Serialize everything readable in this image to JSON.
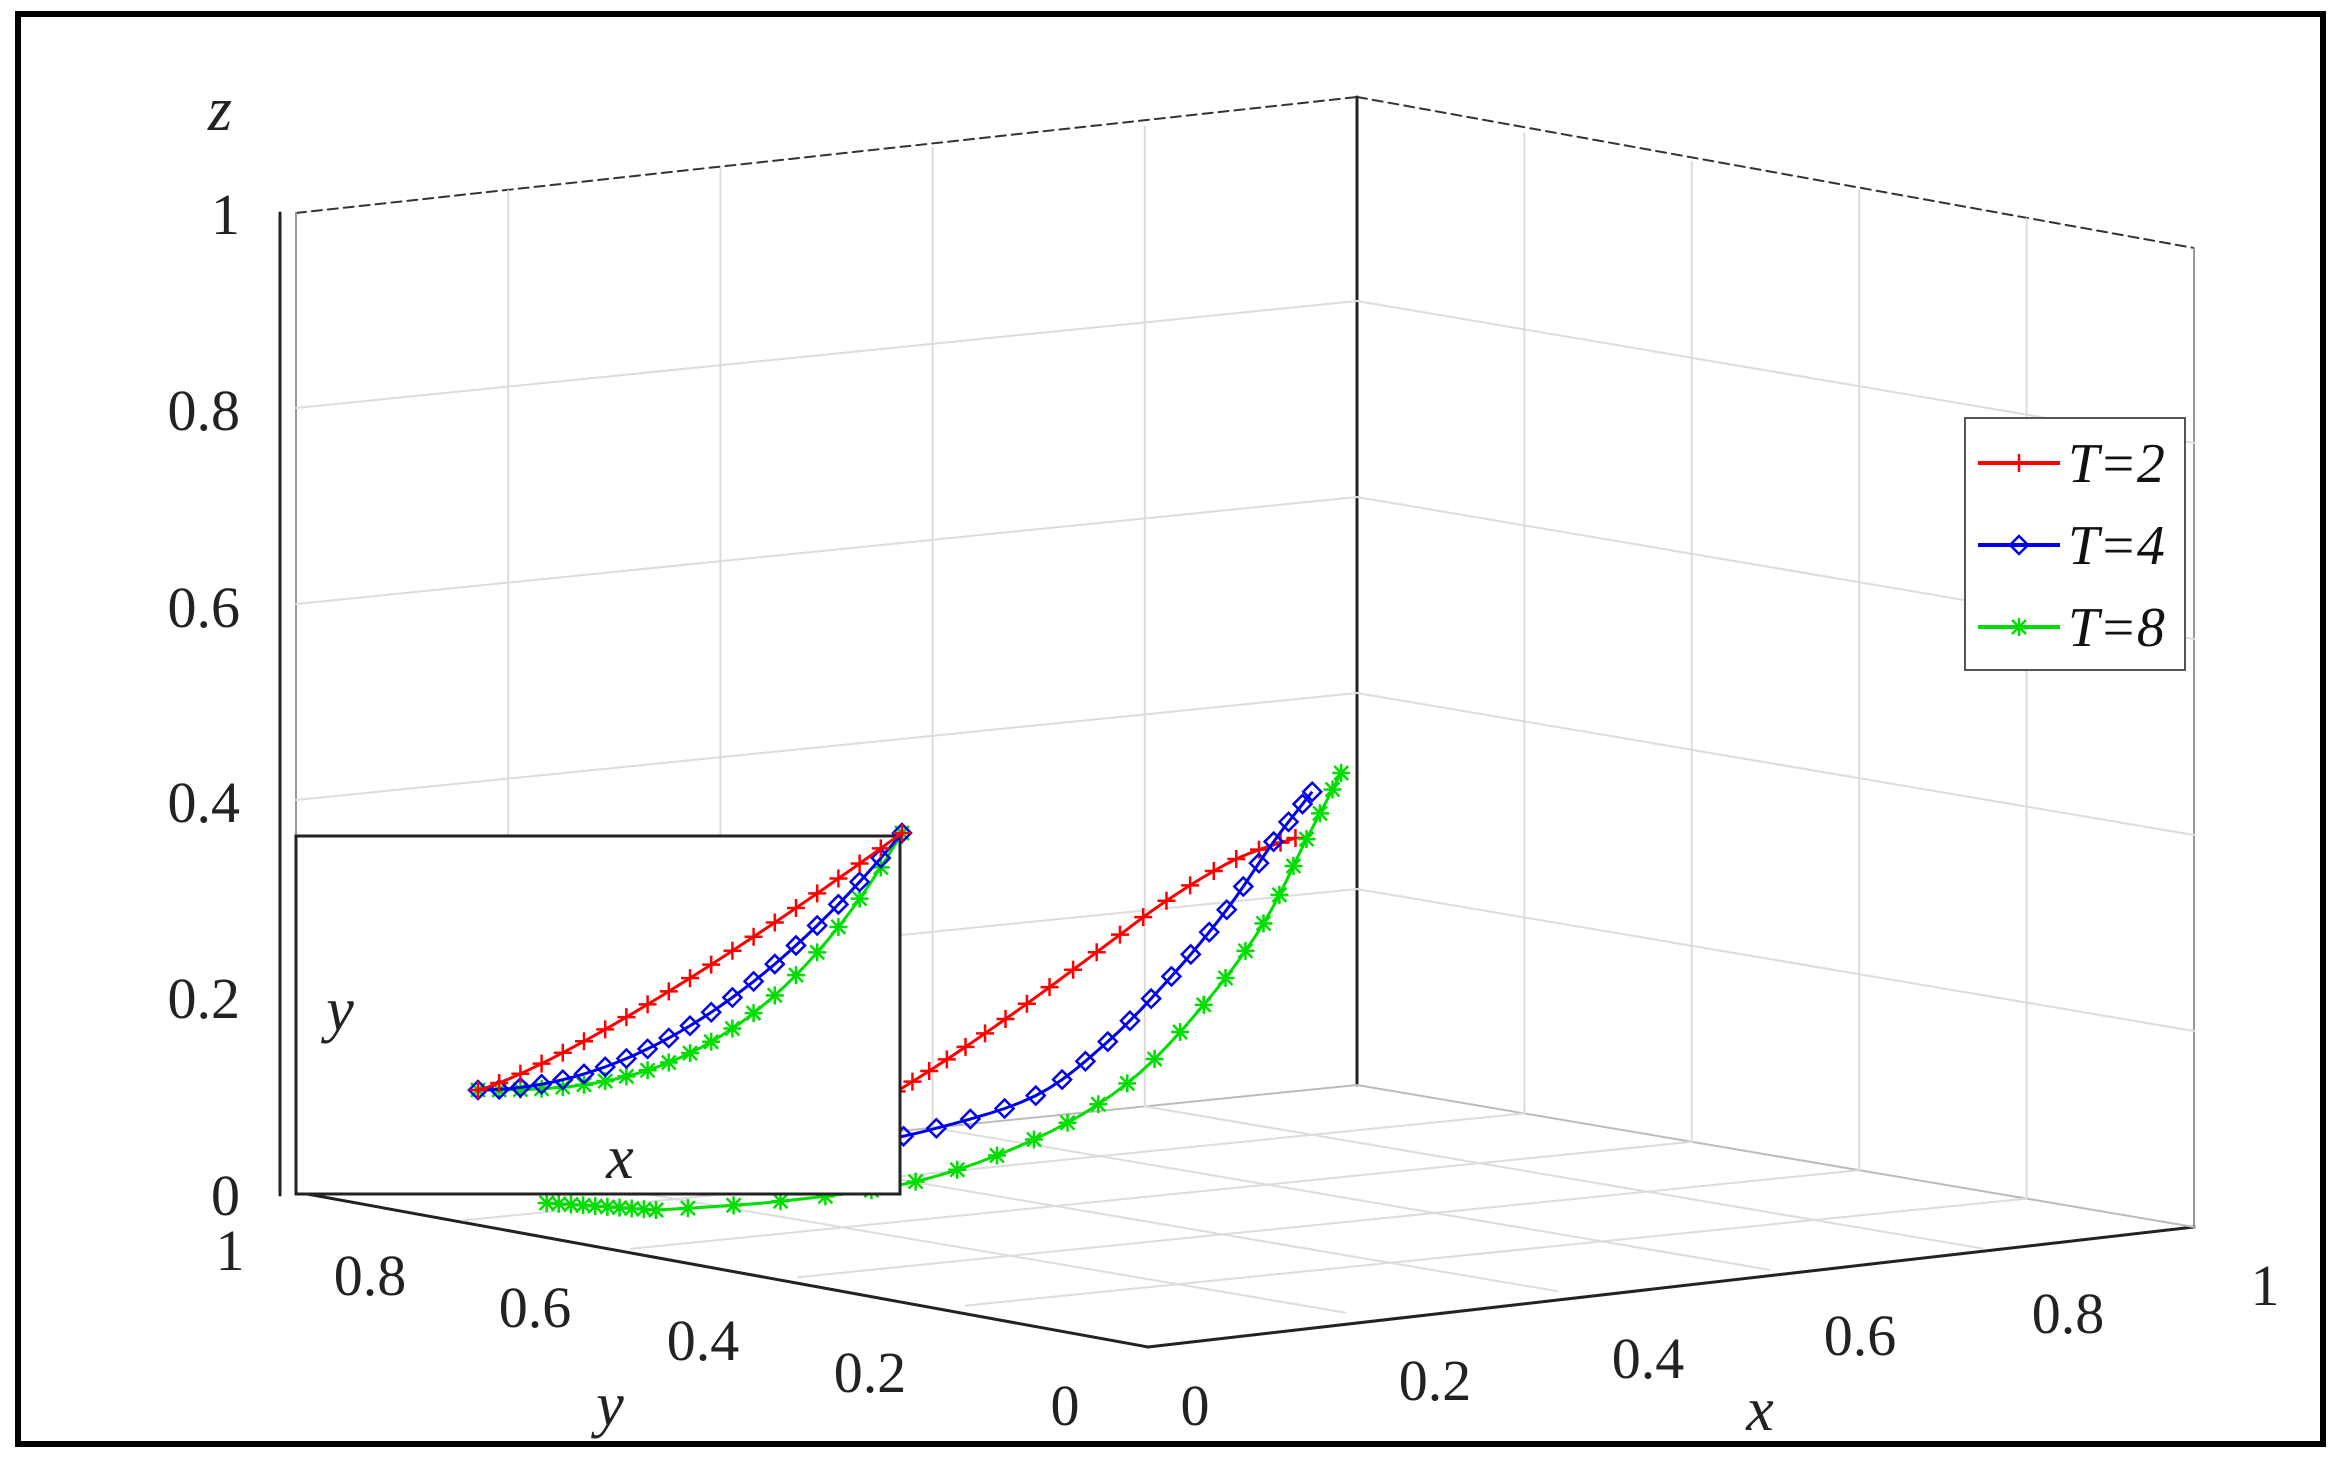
{
  "chart_data": {
    "type": "line",
    "projection": "3d",
    "grid": true,
    "legend_position": "right",
    "axes": {
      "x": {
        "label": "x",
        "ticks": [
          "0",
          "0.2",
          "0.4",
          "0.6",
          "0.8",
          "1"
        ],
        "range": [
          0,
          1
        ]
      },
      "y": {
        "label": "y",
        "ticks": [
          "0",
          "0.2",
          "0.4",
          "0.6",
          "0.8",
          "1"
        ],
        "range": [
          0,
          1
        ]
      },
      "z": {
        "label": "z",
        "ticks": [
          "0",
          "0.2",
          "0.4",
          "0.6",
          "0.8",
          "1"
        ],
        "range": [
          0,
          1
        ]
      }
    },
    "series": [
      {
        "name": "T=2",
        "color": "#ff0000",
        "marker": "plus",
        "x": [
          0.18,
          0.16,
          0.14,
          0.12,
          0.1,
          0.09,
          0.09,
          0.1,
          0.12
        ],
        "y": [
          0.2,
          0.24,
          0.29,
          0.34,
          0.39,
          0.44,
          0.49,
          0.54,
          0.59
        ],
        "z": [
          0.3,
          0.28,
          0.24,
          0.19,
          0.14,
          0.1,
          0.07,
          0.05,
          0.04
        ]
      },
      {
        "name": "T=4",
        "color": "#0000ee",
        "marker": "diamond",
        "x": [
          0.2,
          0.23,
          0.25,
          0.26,
          0.26,
          0.25,
          0.22,
          0.18,
          0.15
        ],
        "y": [
          0.2,
          0.26,
          0.32,
          0.38,
          0.44,
          0.5,
          0.57,
          0.63,
          0.69
        ],
        "z": [
          0.35,
          0.31,
          0.25,
          0.19,
          0.13,
          0.08,
          0.05,
          0.03,
          0.02
        ]
      },
      {
        "name": "T=8",
        "color": "#00dd00",
        "marker": "star",
        "x": [
          0.26,
          0.32,
          0.37,
          0.4,
          0.41,
          0.4,
          0.36,
          0.3,
          0.24
        ],
        "y": [
          0.22,
          0.3,
          0.38,
          0.46,
          0.54,
          0.62,
          0.7,
          0.78,
          0.85
        ],
        "z": [
          0.38,
          0.33,
          0.26,
          0.19,
          0.12,
          0.07,
          0.03,
          0.01,
          0.0
        ]
      }
    ],
    "inset": {
      "xlabel": "x",
      "ylabel": "y"
    }
  }
}
